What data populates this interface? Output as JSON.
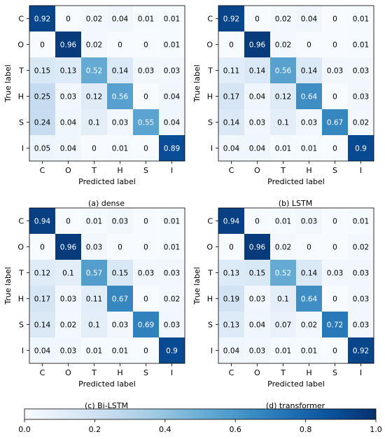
{
  "chart_data": [
    {
      "type": "heatmap",
      "caption": "(a) dense",
      "xlabel": "Predicted label",
      "ylabel": "True label",
      "x_categories": [
        "C",
        "O",
        "T",
        "H",
        "S",
        "I"
      ],
      "y_categories": [
        "C",
        "O",
        "T",
        "H",
        "S",
        "I"
      ],
      "values": [
        [
          0.92,
          0.0,
          0.02,
          0.04,
          0.01,
          0.01
        ],
        [
          0.0,
          0.96,
          0.02,
          0.0,
          0.0,
          0.01
        ],
        [
          0.15,
          0.13,
          0.52,
          0.14,
          0.03,
          0.03
        ],
        [
          0.25,
          0.03,
          0.12,
          0.56,
          0.0,
          0.04
        ],
        [
          0.24,
          0.04,
          0.1,
          0.03,
          0.55,
          0.04
        ],
        [
          0.05,
          0.04,
          0.0,
          0.01,
          0.0,
          0.89
        ]
      ]
    },
    {
      "type": "heatmap",
      "caption": "(b) LSTM",
      "xlabel": "Predicted label",
      "ylabel": "True label",
      "x_categories": [
        "C",
        "O",
        "T",
        "H",
        "S",
        "I"
      ],
      "y_categories": [
        "C",
        "O",
        "T",
        "H",
        "S",
        "I"
      ],
      "values": [
        [
          0.92,
          0.0,
          0.02,
          0.04,
          0.0,
          0.01
        ],
        [
          0.0,
          0.96,
          0.02,
          0.0,
          0.0,
          0.01
        ],
        [
          0.11,
          0.14,
          0.56,
          0.14,
          0.03,
          0.03
        ],
        [
          0.17,
          0.04,
          0.12,
          0.64,
          0.0,
          0.03
        ],
        [
          0.14,
          0.03,
          0.1,
          0.03,
          0.67,
          0.02
        ],
        [
          0.04,
          0.04,
          0.01,
          0.01,
          0.0,
          0.9
        ]
      ]
    },
    {
      "type": "heatmap",
      "caption": "(c) Bi-LSTM",
      "xlabel": "Predicted label",
      "ylabel": "True label",
      "x_categories": [
        "C",
        "O",
        "T",
        "H",
        "S",
        "I"
      ],
      "y_categories": [
        "C",
        "O",
        "T",
        "H",
        "S",
        "I"
      ],
      "values": [
        [
          0.94,
          0.0,
          0.01,
          0.03,
          0.0,
          0.01
        ],
        [
          0.0,
          0.96,
          0.03,
          0.0,
          0.0,
          0.01
        ],
        [
          0.12,
          0.1,
          0.57,
          0.15,
          0.03,
          0.03
        ],
        [
          0.17,
          0.03,
          0.11,
          0.67,
          0.0,
          0.02
        ],
        [
          0.14,
          0.02,
          0.1,
          0.03,
          0.69,
          0.03
        ],
        [
          0.04,
          0.03,
          0.01,
          0.01,
          0.0,
          0.9
        ]
      ]
    },
    {
      "type": "heatmap",
      "caption": "(d) transformer",
      "xlabel": "Predicted label",
      "ylabel": "True label",
      "x_categories": [
        "C",
        "O",
        "T",
        "H",
        "S",
        "I"
      ],
      "y_categories": [
        "C",
        "O",
        "T",
        "H",
        "S",
        "I"
      ],
      "values": [
        [
          0.94,
          0.0,
          0.01,
          0.03,
          0.0,
          0.01
        ],
        [
          0.0,
          0.96,
          0.02,
          0.0,
          0.0,
          0.02
        ],
        [
          0.13,
          0.15,
          0.52,
          0.14,
          0.03,
          0.03
        ],
        [
          0.19,
          0.03,
          0.1,
          0.64,
          0.0,
          0.03
        ],
        [
          0.13,
          0.04,
          0.07,
          0.02,
          0.72,
          0.03
        ],
        [
          0.04,
          0.03,
          0.01,
          0.01,
          0.0,
          0.92
        ]
      ]
    }
  ],
  "colorbar": {
    "colormap": "Blues",
    "range": [
      0.0,
      1.0
    ],
    "ticks": [
      0.0,
      0.2,
      0.4,
      0.6,
      0.8,
      1.0
    ],
    "tick_labels": [
      "0.0",
      "0.2",
      "0.4",
      "0.6",
      "0.8",
      "1.0"
    ]
  }
}
